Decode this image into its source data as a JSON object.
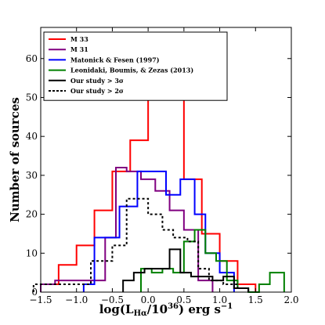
{
  "chart_data": {
    "type": "histogram",
    "xlabel": "log(L",
    "xlabel_sub": "Hα",
    "xlabel_tail": "/10",
    "xlabel_sup": "36",
    "xlabel_units": ") erg s",
    "xlabel_units_sup": "−1",
    "ylabel": "Number of sources",
    "xlim": [
      -1.5,
      2.0
    ],
    "ylim": [
      0,
      68
    ],
    "xticks": [
      -1.5,
      -1.0,
      -0.5,
      0.0,
      0.5,
      1.0,
      1.5,
      2.0
    ],
    "xtick_labels": [
      "−1.5",
      "−1.0",
      "−0.5",
      "0.0",
      "0.5",
      "1.0",
      "1.5",
      "2.0"
    ],
    "yticks": [
      0,
      10,
      20,
      30,
      40,
      50,
      60
    ],
    "ytick_labels": [
      "0",
      "10",
      "20",
      "30",
      "40",
      "50",
      "60"
    ],
    "grid": false,
    "legend_position": "top-left",
    "series": [
      {
        "name": "M 33",
        "color": "#ff0000",
        "dash": "solid",
        "edges": [
          -1.5,
          -1.25,
          -1.0,
          -0.75,
          -0.5,
          -0.25,
          0.0,
          0.25,
          0.5,
          0.75,
          1.0,
          1.25,
          1.5
        ],
        "counts": [
          2,
          7,
          12,
          21,
          31,
          39,
          54,
          65,
          29,
          15,
          8,
          2
        ]
      },
      {
        "name": "M 31",
        "color": "#800080",
        "dash": "solid",
        "edges": [
          -1.5,
          -1.3,
          -0.6,
          -0.45,
          -0.3,
          -0.1,
          0.1,
          0.3,
          0.5,
          0.7,
          0.9
        ],
        "counts": [
          2,
          3,
          14,
          32,
          31,
          29,
          26,
          21,
          16,
          3
        ]
      },
      {
        "name": "Matonick & Fesen (1997)",
        "color": "#0000ff",
        "dash": "solid",
        "edges": [
          -0.9,
          -0.75,
          -0.4,
          -0.15,
          0.25,
          0.45,
          0.65,
          0.8,
          1.0,
          1.2
        ],
        "counts": [
          2,
          14,
          22,
          31,
          25,
          29,
          20,
          10,
          5
        ]
      },
      {
        "name": "Leonidaki, Boumis, & Zezas (2013)",
        "color": "#008000",
        "dash": "solid",
        "edges": [
          -0.1,
          0.05,
          0.2,
          0.35,
          0.5,
          0.65,
          0.8,
          0.95,
          1.1,
          1.25,
          1.4,
          1.55,
          1.7,
          1.9
        ],
        "counts": [
          6,
          5,
          6,
          5,
          13,
          16,
          10,
          8,
          3,
          1,
          0,
          2,
          5
        ]
      },
      {
        "name": "Our study > 3σ",
        "color": "#000000",
        "dash": "solid",
        "edges": [
          -0.35,
          -0.2,
          -0.05,
          0.1,
          0.3,
          0.45,
          0.6,
          0.75,
          0.9,
          1.05,
          1.2,
          1.4
        ],
        "counts": [
          3,
          5,
          6,
          6,
          11,
          5,
          4,
          4,
          3,
          4,
          1
        ]
      },
      {
        "name": "Our study > 2σ",
        "color": "#000000",
        "dash": "dotted",
        "edges": [
          -1.6,
          -0.8,
          -0.5,
          -0.3,
          -0.15,
          0.0,
          0.2,
          0.35,
          0.55,
          0.7,
          0.85,
          1.05,
          1.25,
          1.4
        ],
        "counts": [
          2,
          8,
          12,
          24,
          24,
          20,
          16,
          14,
          13,
          6,
          3,
          2,
          1
        ]
      }
    ]
  }
}
